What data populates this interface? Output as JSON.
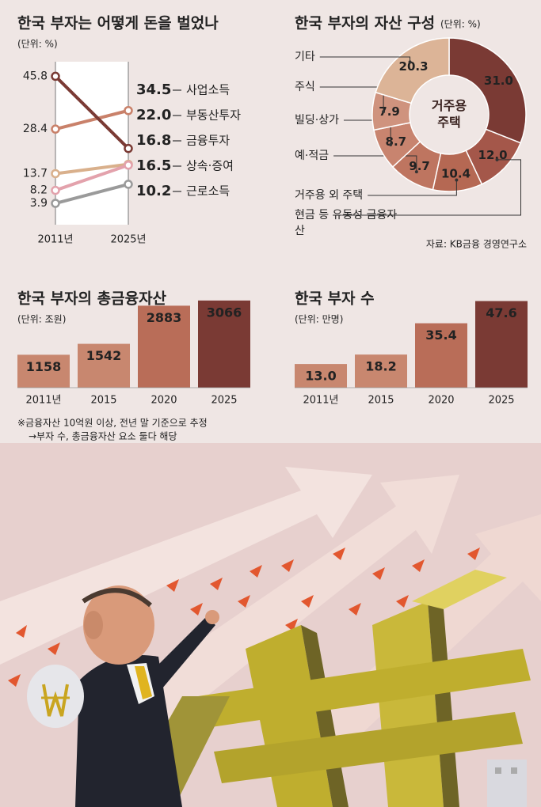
{
  "chart_data": [
    {
      "type": "slope",
      "title": "한국 부자는 어떻게 돈을 벌었나",
      "subtitle": "(단위: %)",
      "x": [
        "2011년",
        "2025년"
      ],
      "ylim": [
        0,
        48
      ],
      "series": [
        {
          "name": "사업소득",
          "color": "#c9816a",
          "values": [
            28.4,
            34.5
          ],
          "value_labels": [
            "28.4",
            "34.5"
          ]
        },
        {
          "name": "부동산투자",
          "color": "#7a3a34",
          "values": [
            45.8,
            22.0
          ],
          "value_labels": [
            "45.8",
            "22.0"
          ]
        },
        {
          "name": "금융투자",
          "color": "#d9b08c",
          "values": [
            13.7,
            16.8
          ],
          "value_labels": [
            "13.7",
            "16.8"
          ]
        },
        {
          "name": "상속·증여",
          "color": "#e3a2ac",
          "values": [
            8.2,
            16.5
          ],
          "value_labels": [
            "8.2",
            "16.5"
          ]
        },
        {
          "name": "근로소득",
          "color": "#9a9a9a",
          "values": [
            3.9,
            10.2
          ],
          "value_labels": [
            "3.9",
            "10.2"
          ]
        }
      ]
    },
    {
      "type": "donut",
      "title": "한국 부자의 자산 구성",
      "subtitle": "(단위: %)",
      "categories": [
        "거주용 주택",
        "현금 등 유동성 금융자산",
        "거주용 외 주택",
        "예·적금",
        "빌딩·상가",
        "주식",
        "기타"
      ],
      "values": [
        31.0,
        12.0,
        10.4,
        9.7,
        8.7,
        7.9,
        20.3
      ],
      "value_labels": [
        "31.0",
        "12.0",
        "10.4",
        "9.7",
        "8.7",
        "7.9",
        "20.3"
      ],
      "colors": [
        "#7a3a34",
        "#a4574a",
        "#b56853",
        "#be7560",
        "#c8846f",
        "#cf937e",
        "#dcb497"
      ],
      "source": "자료: KB금융 경영연구소"
    },
    {
      "type": "bar",
      "title": "한국 부자의 총금융자산",
      "subtitle": "(단위: 조원)",
      "categories": [
        "2011년",
        "2015",
        "2020",
        "2025"
      ],
      "values": [
        1158,
        1542,
        2883,
        3066
      ],
      "colors": [
        "#c8876f",
        "#c8876f",
        "#b96d58",
        "#7a3a34"
      ],
      "ylim": [
        0,
        3200
      ],
      "notes": [
        "※금융자산 10억원 이상, 전년 말 기준으로 추정",
        "→부자 수, 총금융자산 요소 둘다 해당"
      ]
    },
    {
      "type": "bar",
      "title": "한국 부자 수",
      "subtitle": "(단위: 만명)",
      "categories": [
        "2011년",
        "2015",
        "2020",
        "2025"
      ],
      "values": [
        13.0,
        18.2,
        35.4,
        47.6
      ],
      "value_labels": [
        "13.0",
        "18.2",
        "35.4",
        "47.6"
      ],
      "colors": [
        "#c8876f",
        "#c8876f",
        "#b96d58",
        "#7a3a34"
      ],
      "ylim": [
        0,
        50
      ]
    }
  ]
}
